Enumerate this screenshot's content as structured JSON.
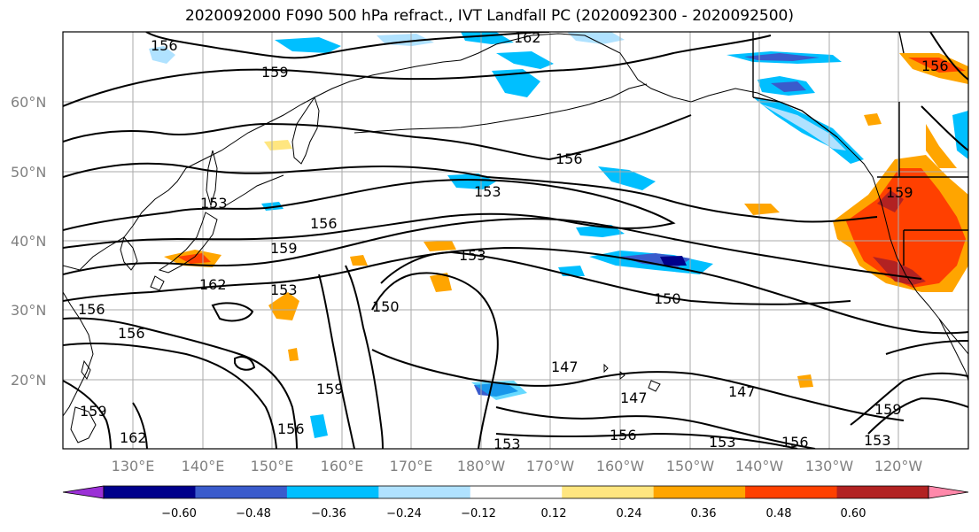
{
  "title": "2020092000 F090 500 hPa refract., IVT Landfall PC (2020092300 - 2020092500)",
  "latitude_labels": [
    "20°N",
    "30°N",
    "40°N",
    "50°N",
    "60°N"
  ],
  "longitude_labels": [
    "130°E",
    "140°E",
    "150°E",
    "160°E",
    "170°E",
    "180°W",
    "170°W",
    "160°W",
    "150°W",
    "140°W",
    "130°W",
    "120°W"
  ],
  "colorbar": {
    "tick_labels": [
      "−0.60",
      "−0.48",
      "−0.36",
      "−0.24",
      "−0.12",
      "0.12",
      "0.24",
      "0.36",
      "0.48",
      "0.60"
    ],
    "colors": [
      "#9b30d6",
      "#00008b",
      "#3a5bcc",
      "#00bfff",
      "#b0e2ff",
      "#ffffff",
      "#ffe680",
      "#ffa500",
      "#ff4000",
      "#b22222",
      "#ff88aa"
    ]
  },
  "contour_labels": {
    "c156a": "156",
    "c159a": "159",
    "c162a": "162",
    "c156b": "156",
    "c153a": "153",
    "c153b": "153",
    "c156c": "156",
    "c159b": "159",
    "c162b": "162",
    "c153c": "153",
    "c153d": "153",
    "c150a": "150",
    "c150b": "150",
    "c156d": "156",
    "c159c": "159",
    "c156e": "156",
    "c147a": "147",
    "c147b": "147",
    "c147c": "147",
    "c156f": "156",
    "c153e": "153",
    "c153f": "153",
    "c156g": "156",
    "c153g": "153",
    "c159d": "159",
    "c159e": "159",
    "c162c": "162",
    "c156h": "156",
    "c159f": "159",
    "c156i": "156"
  },
  "map": {
    "projection": "plate-carree",
    "lon_range": [
      "120°E",
      "115°W"
    ],
    "lat_range": [
      "10°N",
      "70°N"
    ]
  }
}
